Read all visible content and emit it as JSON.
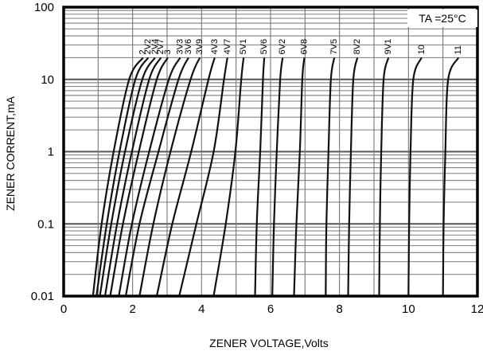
{
  "chart_data": {
    "type": "line",
    "xlabel": "ZENER VOLTAGE,Volts",
    "ylabel": "ZENER CORRENT,mA",
    "annotation": "TA =25°C",
    "x_scale": "linear",
    "y_scale": "log",
    "xlim": [
      0,
      12
    ],
    "ylim": [
      0.01,
      100
    ],
    "x_ticks": [
      0,
      2,
      4,
      6,
      8,
      10,
      12
    ],
    "x_tick_labels": [
      "0",
      "2",
      "4",
      "6",
      "8",
      "10",
      "12"
    ],
    "y_ticks": [
      0.01,
      0.1,
      1,
      10,
      100
    ],
    "y_tick_labels": [
      "0.01",
      "0.1",
      "1",
      "10",
      "100"
    ],
    "grid": true,
    "series_color": "#111111",
    "series": [
      {
        "name": "2",
        "points": [
          [
            0.85,
            0.01
          ],
          [
            1.1,
            0.1
          ],
          [
            1.45,
            1
          ],
          [
            1.9,
            10
          ],
          [
            2.3,
            20
          ]
        ]
      },
      {
        "name": "2V2",
        "points": [
          [
            0.95,
            0.01
          ],
          [
            1.25,
            0.1
          ],
          [
            1.62,
            1
          ],
          [
            2.08,
            10
          ],
          [
            2.45,
            20
          ]
        ]
      },
      {
        "name": "2V4",
        "points": [
          [
            1.05,
            0.01
          ],
          [
            1.38,
            0.1
          ],
          [
            1.78,
            1
          ],
          [
            2.28,
            10
          ],
          [
            2.65,
            20
          ]
        ]
      },
      {
        "name": "2V7",
        "points": [
          [
            1.2,
            0.01
          ],
          [
            1.55,
            0.1
          ],
          [
            1.98,
            1
          ],
          [
            2.48,
            10
          ],
          [
            2.82,
            20
          ]
        ]
      },
      {
        "name": "3",
        "points": [
          [
            1.35,
            0.01
          ],
          [
            1.72,
            0.1
          ],
          [
            2.18,
            1
          ],
          [
            2.7,
            10
          ],
          [
            3.02,
            20
          ]
        ]
      },
      {
        "name": "3V3",
        "points": [
          [
            1.6,
            0.01
          ],
          [
            1.98,
            0.1
          ],
          [
            2.48,
            1
          ],
          [
            3.05,
            10
          ],
          [
            3.38,
            20
          ]
        ]
      },
      {
        "name": "3V6",
        "points": [
          [
            1.8,
            0.01
          ],
          [
            2.2,
            0.1
          ],
          [
            2.75,
            1
          ],
          [
            3.33,
            10
          ],
          [
            3.62,
            20
          ]
        ]
      },
      {
        "name": "3V9",
        "points": [
          [
            2.2,
            0.01
          ],
          [
            2.6,
            0.1
          ],
          [
            3.1,
            1
          ],
          [
            3.68,
            10
          ],
          [
            3.95,
            20
          ]
        ]
      },
      {
        "name": "4V3",
        "points": [
          [
            2.7,
            0.01
          ],
          [
            3.15,
            0.1
          ],
          [
            3.7,
            1
          ],
          [
            4.2,
            10
          ],
          [
            4.38,
            20
          ]
        ]
      },
      {
        "name": "4V7",
        "points": [
          [
            3.35,
            0.01
          ],
          [
            3.85,
            0.1
          ],
          [
            4.35,
            1
          ],
          [
            4.65,
            10
          ],
          [
            4.75,
            20
          ]
        ]
      },
      {
        "name": "5V1",
        "points": [
          [
            4.35,
            0.01
          ],
          [
            4.7,
            0.1
          ],
          [
            4.98,
            1
          ],
          [
            5.15,
            10
          ],
          [
            5.22,
            20
          ]
        ]
      },
      {
        "name": "5V6",
        "points": [
          [
            5.55,
            0.01
          ],
          [
            5.6,
            0.1
          ],
          [
            5.7,
            1
          ],
          [
            5.78,
            10
          ],
          [
            5.82,
            20
          ]
        ]
      },
      {
        "name": "6V2",
        "points": [
          [
            6.05,
            0.01
          ],
          [
            6.1,
            0.1
          ],
          [
            6.18,
            1
          ],
          [
            6.28,
            10
          ],
          [
            6.35,
            20
          ]
        ]
      },
      {
        "name": "6V8",
        "points": [
          [
            6.68,
            0.01
          ],
          [
            6.75,
            0.1
          ],
          [
            6.85,
            1
          ],
          [
            6.92,
            10
          ],
          [
            6.98,
            20
          ]
        ]
      },
      {
        "name": "7V5",
        "points": [
          [
            7.6,
            0.01
          ],
          [
            7.62,
            0.1
          ],
          [
            7.68,
            1
          ],
          [
            7.75,
            10
          ],
          [
            7.85,
            20
          ]
        ]
      },
      {
        "name": "8V2",
        "points": [
          [
            8.25,
            0.01
          ],
          [
            8.28,
            0.1
          ],
          [
            8.33,
            1
          ],
          [
            8.4,
            10
          ],
          [
            8.52,
            20
          ]
        ]
      },
      {
        "name": "9V1",
        "points": [
          [
            9.15,
            0.01
          ],
          [
            9.17,
            0.1
          ],
          [
            9.21,
            1
          ],
          [
            9.28,
            10
          ],
          [
            9.42,
            20
          ]
        ]
      },
      {
        "name": "10",
        "points": [
          [
            10.0,
            0.01
          ],
          [
            10.02,
            0.1
          ],
          [
            10.06,
            1
          ],
          [
            10.14,
            10
          ],
          [
            10.38,
            20
          ]
        ]
      },
      {
        "name": "11",
        "points": [
          [
            11.0,
            0.01
          ],
          [
            11.02,
            0.1
          ],
          [
            11.07,
            1
          ],
          [
            11.15,
            10
          ],
          [
            11.45,
            20
          ]
        ]
      }
    ]
  }
}
